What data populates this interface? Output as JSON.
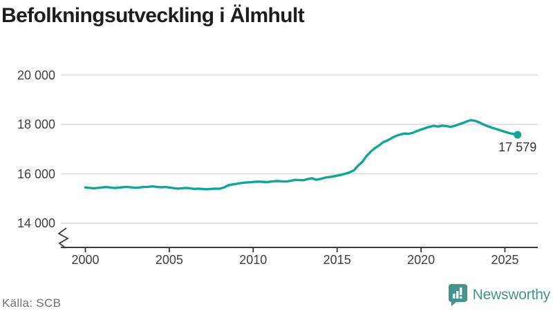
{
  "title": "Befolkningsutveckling i Älmhult",
  "source": "Källa: SCB",
  "branding": {
    "wordmark": "Newsworthy",
    "color": "#45938D"
  },
  "colors": {
    "line": "#10A59A",
    "grid": "#d9d9d9",
    "axis": "#3a3a3a",
    "tick_text": "#3d3d3d",
    "title_text": "#1d1d1d",
    "source_text": "#6f6f6f"
  },
  "chart_data": {
    "type": "line",
    "title": "Befolkningsutveckling i Älmhult",
    "xlabel": "",
    "ylabel": "",
    "grid": "horizontal",
    "axis_break": true,
    "legend": "none",
    "xlim": [
      2000,
      2025.75
    ],
    "ylim": [
      14000,
      20000
    ],
    "x_ticks": {
      "values": [
        2000,
        2005,
        2010,
        2015,
        2020,
        2025
      ],
      "labels": [
        "2000",
        "2005",
        "2010",
        "2015",
        "2020",
        "2025"
      ]
    },
    "y_ticks": {
      "values": [
        14000,
        16000,
        18000,
        20000
      ],
      "labels": [
        "14 000",
        "16 000",
        "18 000",
        "20 000"
      ]
    },
    "last_point_label": "17 579",
    "last_point_value": 17579,
    "series": [
      {
        "name": "Älmhult",
        "color": "#10A59A",
        "x": [
          2000.0,
          2000.25,
          2000.5,
          2000.75,
          2001.0,
          2001.25,
          2001.5,
          2001.75,
          2002.0,
          2002.25,
          2002.5,
          2002.75,
          2003.0,
          2003.25,
          2003.5,
          2003.75,
          2004.0,
          2004.25,
          2004.5,
          2004.75,
          2005.0,
          2005.25,
          2005.5,
          2005.75,
          2006.0,
          2006.25,
          2006.5,
          2006.75,
          2007.0,
          2007.25,
          2007.5,
          2007.75,
          2008.0,
          2008.25,
          2008.5,
          2008.75,
          2009.0,
          2009.25,
          2009.5,
          2009.75,
          2010.0,
          2010.25,
          2010.5,
          2010.75,
          2011.0,
          2011.25,
          2011.5,
          2011.75,
          2012.0,
          2012.25,
          2012.5,
          2012.75,
          2013.0,
          2013.25,
          2013.5,
          2013.75,
          2014.0,
          2014.25,
          2014.5,
          2014.75,
          2015.0,
          2015.25,
          2015.5,
          2015.75,
          2016.0,
          2016.25,
          2016.5,
          2016.75,
          2017.0,
          2017.25,
          2017.5,
          2017.75,
          2018.0,
          2018.25,
          2018.5,
          2018.75,
          2019.0,
          2019.25,
          2019.5,
          2019.75,
          2020.0,
          2020.25,
          2020.5,
          2020.75,
          2021.0,
          2021.25,
          2021.5,
          2021.75,
          2022.0,
          2022.25,
          2022.5,
          2022.75,
          2023.0,
          2023.25,
          2023.5,
          2023.75,
          2024.0,
          2024.25,
          2024.5,
          2024.75,
          2025.0,
          2025.25,
          2025.5,
          2025.75
        ],
        "values": [
          15450,
          15430,
          15415,
          15430,
          15450,
          15465,
          15445,
          15425,
          15440,
          15460,
          15470,
          15450,
          15435,
          15450,
          15465,
          15475,
          15490,
          15470,
          15455,
          15465,
          15445,
          15420,
          15400,
          15415,
          15430,
          15410,
          15390,
          15400,
          15385,
          15375,
          15390,
          15400,
          15395,
          15445,
          15530,
          15570,
          15595,
          15625,
          15645,
          15655,
          15670,
          15685,
          15680,
          15665,
          15680,
          15700,
          15705,
          15690,
          15690,
          15720,
          15755,
          15745,
          15740,
          15790,
          15820,
          15760,
          15790,
          15840,
          15865,
          15890,
          15925,
          15965,
          16005,
          16060,
          16140,
          16330,
          16480,
          16720,
          16900,
          17040,
          17150,
          17280,
          17350,
          17450,
          17530,
          17590,
          17630,
          17620,
          17660,
          17730,
          17790,
          17850,
          17900,
          17940,
          17910,
          17950,
          17930,
          17900,
          17940,
          18000,
          18060,
          18130,
          18170,
          18140,
          18070,
          17990,
          17920,
          17860,
          17810,
          17750,
          17700,
          17650,
          17610,
          17579
        ]
      }
    ]
  }
}
